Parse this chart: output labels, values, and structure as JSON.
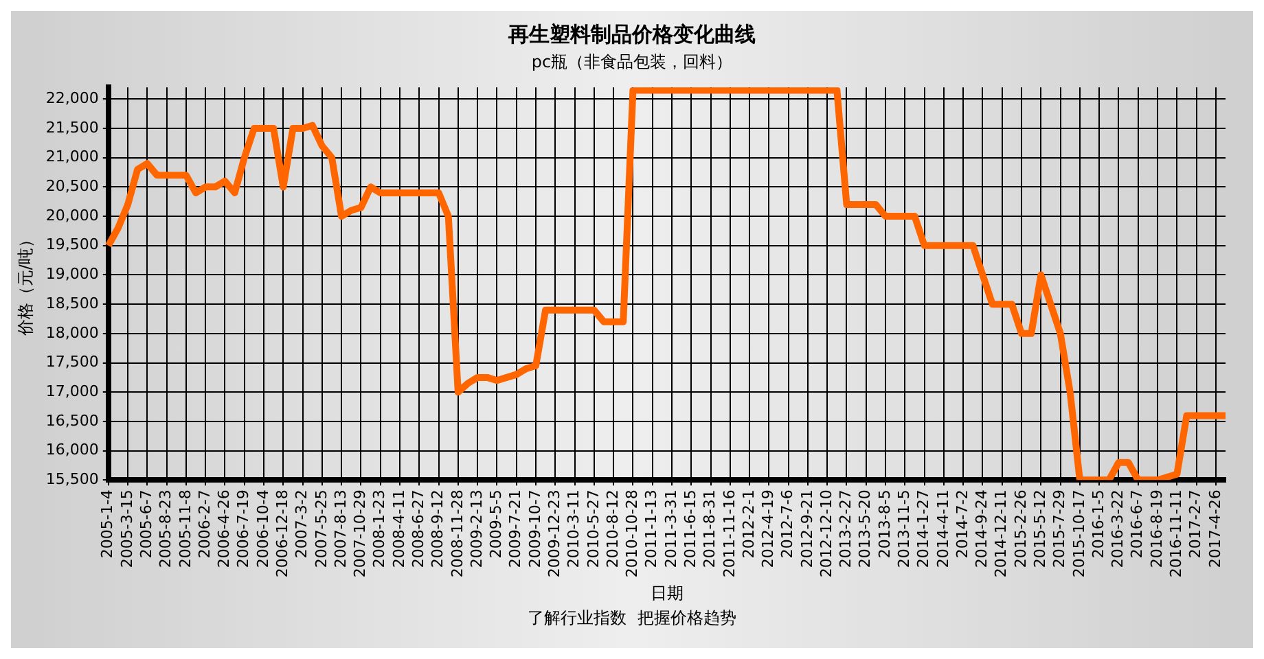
{
  "chart_data": {
    "type": "line",
    "title": "再生塑料制品价格变化曲线",
    "subtitle": "pc瓶（非食品包装，回料）",
    "xlabel": "日期",
    "ylabel": "价格（元/吨）",
    "annotations": [
      "了解行业指数  把握价格趋势"
    ],
    "categories": [
      "2005-1-4",
      null,
      "2005-3-15",
      null,
      "2005-6-7",
      null,
      "2005-8-23",
      null,
      "2005-11-8",
      null,
      "2006-2-7",
      null,
      "2006-4-26",
      null,
      "2006-7-19",
      null,
      "2006-10-4",
      null,
      "2006-12-18",
      null,
      "2007-3-2",
      null,
      "2007-5-25",
      null,
      "2007-8-13",
      null,
      "2007-10-29",
      null,
      "2008-1-23",
      null,
      "2008-4-11",
      null,
      "2008-6-27",
      null,
      "2008-9-12",
      null,
      "2008-11-28",
      null,
      "2009-2-13",
      null,
      "2009-5-5",
      null,
      "2009-7-21",
      null,
      "2009-10-7",
      null,
      "2009-12-23",
      null,
      "2010-3-11",
      null,
      "2010-5-27",
      null,
      "2010-8-12",
      null,
      "2010-10-28",
      null,
      "2011-1-13",
      null,
      "2011-3-31",
      null,
      "2011-6-15",
      null,
      "2011-8-31",
      null,
      "2011-11-16",
      null,
      "2012-2-1",
      null,
      "2012-4-19",
      null,
      "2012-7-6",
      null,
      "2012-9-21",
      null,
      "2012-12-10",
      null,
      "2013-2-27",
      null,
      "2013-5-20",
      null,
      "2013-8-5",
      null,
      "2013-11-5",
      null,
      "2014-1-27",
      null,
      "2014-4-11",
      null,
      "2014-7-2",
      null,
      "2014-9-24",
      null,
      "2014-12-11",
      null,
      "2015-2-26",
      null,
      "2015-5-12",
      null,
      "2015-7-29",
      null,
      "2015-10-17",
      null,
      "2016-1-5",
      null,
      "2016-3-22",
      null,
      "2016-6-7",
      null,
      "2016-8-19",
      null,
      "2016-11-11",
      null,
      "2017-2-7",
      null,
      "2017-4-26",
      null
    ],
    "series": [
      {
        "color": "#ff6600",
        "values": [
          19500,
          19800,
          20200,
          20800,
          20900,
          20700,
          20700,
          20700,
          20700,
          20400,
          20500,
          20500,
          20600,
          20400,
          21000,
          21500,
          21500,
          21500,
          20500,
          21500,
          21500,
          21550,
          21200,
          21000,
          20000,
          20100,
          20150,
          20500,
          20400,
          20400,
          20400,
          20400,
          20400,
          20400,
          20400,
          20000,
          17000,
          17150,
          17250,
          17250,
          17200,
          17250,
          17300,
          17400,
          17450,
          18400,
          18400,
          18400,
          18400,
          18400,
          18400,
          18200,
          18200,
          18200,
          22150,
          22150,
          22150,
          22150,
          22150,
          22150,
          22150,
          22150,
          22150,
          22150,
          22150,
          22150,
          22150,
          22150,
          22150,
          22150,
          22150,
          22150,
          22150,
          22150,
          22150,
          22150,
          20200,
          20200,
          20200,
          20200,
          20000,
          20000,
          20000,
          20000,
          19500,
          19500,
          19500,
          19500,
          19500,
          19500,
          19000,
          18500,
          18500,
          18500,
          18000,
          18000,
          19000,
          18500,
          18000,
          17000,
          15500,
          15500,
          15500,
          15500,
          15800,
          15800,
          15500,
          15500,
          15500,
          15550,
          15600,
          16600,
          16600,
          16600,
          16600,
          16600
        ]
      }
    ],
    "ylim": [
      15500,
      22200
    ],
    "yticks": [
      {
        "value": 15500,
        "label": "15,500"
      },
      {
        "value": 16000,
        "label": "16,000"
      },
      {
        "value": 16500,
        "label": "16,500"
      },
      {
        "value": 17000,
        "label": "17,000"
      },
      {
        "value": 17500,
        "label": "17,500"
      },
      {
        "value": 18000,
        "label": "18,000"
      },
      {
        "value": 18500,
        "label": "18,500"
      },
      {
        "value": 19000,
        "label": "19,000"
      },
      {
        "value": 19500,
        "label": "19,500"
      },
      {
        "value": 20000,
        "label": "20,000"
      },
      {
        "value": 20500,
        "label": "20,500"
      },
      {
        "value": 21000,
        "label": "21,000"
      },
      {
        "value": 21500,
        "label": "21,500"
      },
      {
        "value": 22000,
        "label": "22,000"
      }
    ],
    "grid": true,
    "legend": false,
    "marker": "none",
    "line_style": "solid"
  }
}
